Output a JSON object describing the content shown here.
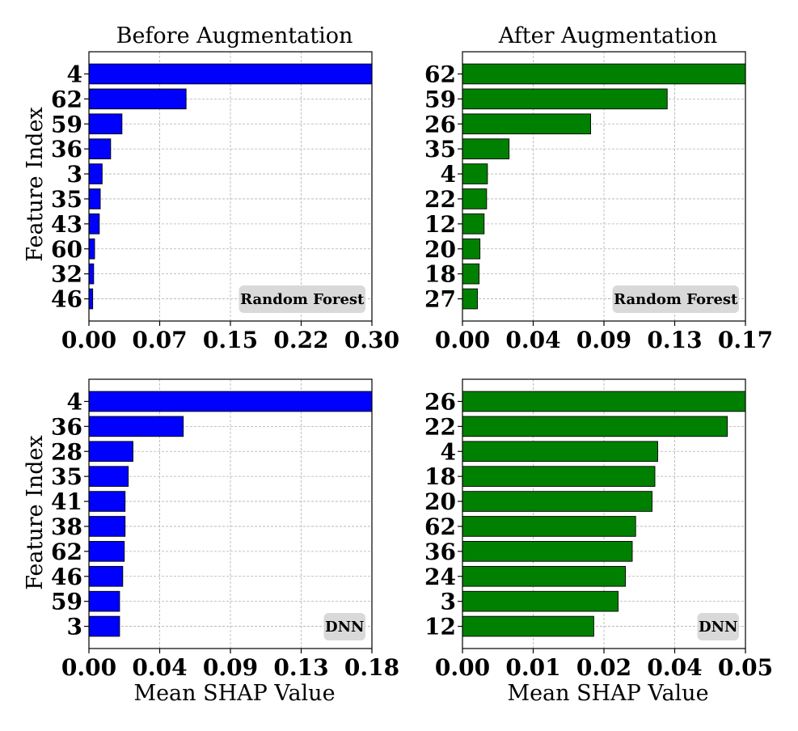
{
  "figure": {
    "column_titles": [
      "Before Augmentation",
      "After Augmentation"
    ],
    "ylabel": "Feature Index",
    "xlabel": "Mean SHAP Value"
  },
  "chart_data": [
    {
      "type": "bar",
      "orientation": "horizontal",
      "title": "Before Augmentation",
      "ylabel": "Feature Index",
      "xlabel": "",
      "badge": "Random Forest",
      "color": "#0000ff",
      "categories": [
        "4",
        "62",
        "59",
        "36",
        "3",
        "35",
        "43",
        "60",
        "32",
        "46"
      ],
      "values": [
        0.3,
        0.103,
        0.035,
        0.023,
        0.014,
        0.012,
        0.011,
        0.006,
        0.005,
        0.004
      ],
      "xlim": [
        0,
        0.3
      ],
      "xticks": [
        "0.00",
        "0.07",
        "0.15",
        "0.22",
        "0.30"
      ],
      "grid": true,
      "badge_position": "bottom-right"
    },
    {
      "type": "bar",
      "orientation": "horizontal",
      "title": "After Augmentation",
      "ylabel": "",
      "xlabel": "",
      "badge": "Random Forest",
      "color": "#008000",
      "categories": [
        "62",
        "59",
        "26",
        "35",
        "4",
        "22",
        "12",
        "20",
        "18",
        "27"
      ],
      "values": [
        0.17,
        0.123,
        0.077,
        0.028,
        0.015,
        0.0145,
        0.013,
        0.0105,
        0.01,
        0.009
      ],
      "xlim": [
        0,
        0.17
      ],
      "xticks": [
        "0.00",
        "0.04",
        "0.09",
        "0.13",
        "0.17"
      ],
      "grid": true,
      "badge_position": "bottom-right"
    },
    {
      "type": "bar",
      "orientation": "horizontal",
      "title": "",
      "ylabel": "Feature Index",
      "xlabel": "Mean SHAP Value",
      "badge": "DNN",
      "color": "#0000ff",
      "categories": [
        "4",
        "36",
        "28",
        "35",
        "41",
        "38",
        "62",
        "46",
        "59",
        "3"
      ],
      "values": [
        0.18,
        0.06,
        0.028,
        0.025,
        0.023,
        0.023,
        0.0225,
        0.0215,
        0.0195,
        0.0195
      ],
      "xlim": [
        0,
        0.18
      ],
      "xticks": [
        "0.00",
        "0.04",
        "0.09",
        "0.13",
        "0.18"
      ],
      "grid": true,
      "badge_position": "bottom-right"
    },
    {
      "type": "bar",
      "orientation": "horizontal",
      "title": "",
      "ylabel": "",
      "xlabel": "Mean SHAP Value",
      "badge": "DNN",
      "color": "#008000",
      "categories": [
        "26",
        "22",
        "4",
        "18",
        "20",
        "62",
        "36",
        "24",
        "3",
        "12"
      ],
      "values": [
        0.05,
        0.0468,
        0.0345,
        0.034,
        0.0335,
        0.0306,
        0.03,
        0.0288,
        0.0275,
        0.0232
      ],
      "xlim": [
        0,
        0.05
      ],
      "xticks": [
        "0.00",
        "0.01",
        "0.02",
        "0.04",
        "0.05"
      ],
      "grid": true,
      "badge_position": "bottom-right"
    }
  ]
}
